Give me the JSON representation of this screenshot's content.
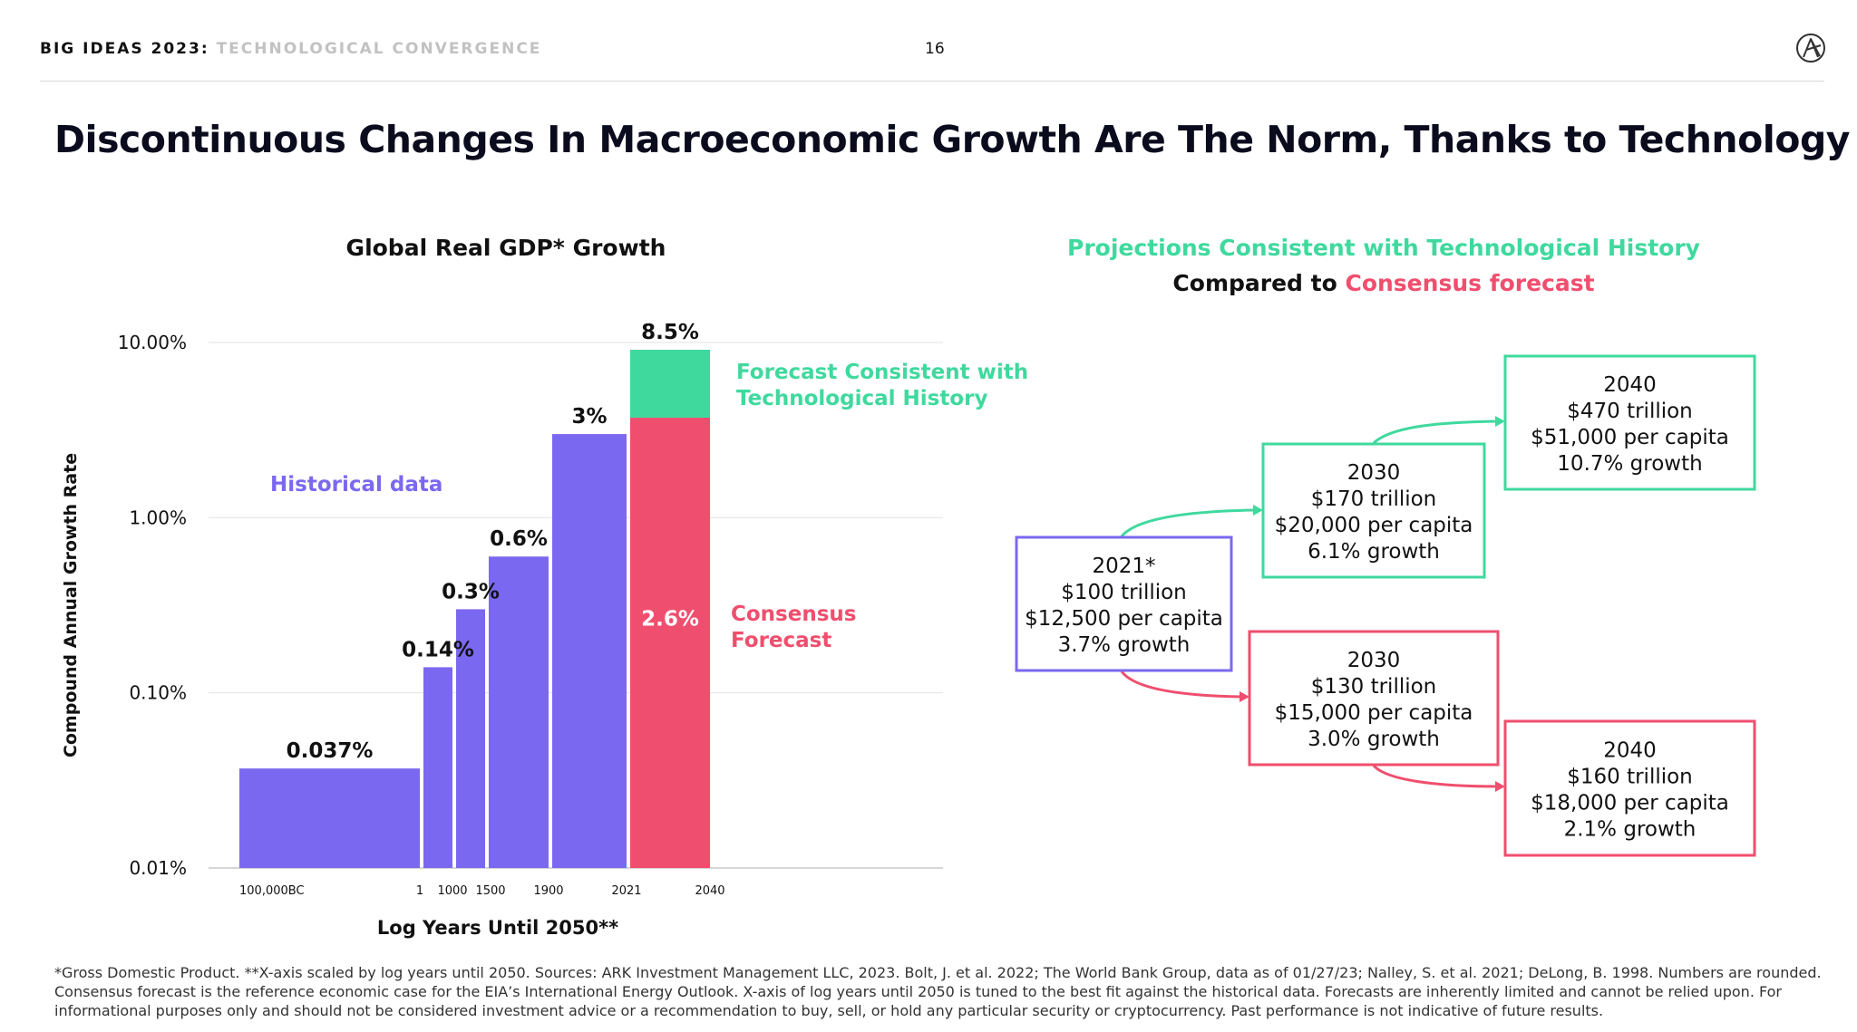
{
  "header": {
    "series": "BIG IDEAS 2023",
    "separator": ":",
    "section": "TECHNOLOGICAL CONVERGENCE",
    "page_number": "16",
    "logo_icon": "ark-logo-icon"
  },
  "title": "Discontinuous Changes In Macroeconomic Growth Are The Norm, Thanks to Technology",
  "colors": {
    "historical": "#7b68f0",
    "consensus": "#f04e6e",
    "technology": "#3fd99e",
    "text": "#111111",
    "muted": "#c2c2c2"
  },
  "chart_data": {
    "type": "bar",
    "title": "Global Real GDP* Growth",
    "ylabel": "Compound Annual Growth Rate",
    "xlabel": "Log Years Until 2050**",
    "yscale": "log",
    "ylim": [
      0.01,
      10
    ],
    "y_ticks": [
      {
        "value": 10,
        "label": "10.00%"
      },
      {
        "value": 1,
        "label": "1.00%"
      },
      {
        "value": 0.1,
        "label": "0.10%"
      },
      {
        "value": 0.01,
        "label": "0.01%"
      }
    ],
    "x_ticks": [
      "100,000BC",
      "1",
      "1000",
      "1500",
      "1900",
      "2021",
      "2040"
    ],
    "series": [
      {
        "name": "Historical data",
        "color": "#7b68f0",
        "bars": [
          {
            "from": "100,000BC",
            "to": "1",
            "value": 0.037,
            "label": "0.037%"
          },
          {
            "from": "1",
            "to": "1000",
            "value": 0.14,
            "label": "0.14%"
          },
          {
            "from": "1000",
            "to": "1500",
            "value": 0.3,
            "label": "0.3%"
          },
          {
            "from": "1500",
            "to": "1900",
            "value": 0.6,
            "label": "0.6%"
          },
          {
            "from": "1900",
            "to": "2021",
            "value": 3,
            "label": "3%"
          }
        ]
      },
      {
        "name": "Consensus Forecast",
        "color": "#f04e6e",
        "bars": [
          {
            "from": "2021",
            "to": "2040",
            "value": 2.6,
            "label": "2.6%"
          }
        ]
      },
      {
        "name": "Forecast Consistent with Technological History",
        "color": "#3fd99e",
        "bars": [
          {
            "from": "2021",
            "to": "2040",
            "value": 8.5,
            "label": "8.5%"
          }
        ]
      }
    ],
    "annotations": {
      "historical": "Historical data",
      "technology": [
        "Forecast Consistent with",
        "Technological History"
      ],
      "consensus": [
        "Consensus",
        "Forecast"
      ]
    }
  },
  "projections": {
    "heading_line1": "Projections Consistent with Technological History",
    "heading_line2_prefix": "Compared to ",
    "heading_line2_highlight": "Consensus forecast",
    "boxes": [
      {
        "id": "2021",
        "kind": "historical",
        "lines": [
          "2021*",
          "$100 trillion",
          "$12,500 per capita",
          "3.7% growth"
        ]
      },
      {
        "id": "tech-2030",
        "kind": "technology",
        "lines": [
          "2030",
          "$170 trillion",
          "$20,000 per capita",
          "6.1% growth"
        ]
      },
      {
        "id": "tech-2040",
        "kind": "technology",
        "lines": [
          "2040",
          "$470 trillion",
          "$51,000 per capita",
          "10.7% growth"
        ]
      },
      {
        "id": "cons-2030",
        "kind": "consensus",
        "lines": [
          "2030",
          "$130 trillion",
          "$15,000 per capita",
          "3.0% growth"
        ]
      },
      {
        "id": "cons-2040",
        "kind": "consensus",
        "lines": [
          "2040",
          "$160 trillion",
          "$18,000 per capita",
          "2.1% growth"
        ]
      }
    ]
  },
  "footnote": [
    "*Gross Domestic Product. **X-axis scaled by log years until 2050. Sources: ARK Investment Management LLC, 2023. Bolt, J. et al. 2022; The World Bank Group, data as of 01/27/23; Nalley, S. et al. 2021; DeLong, B. 1998. Numbers are rounded.",
    "Consensus forecast is the reference economic case for the EIA’s International Energy Outlook. X-axis of log years until 2050 is tuned to the best fit against the historical data. Forecasts are inherently limited and cannot be relied upon. For",
    "informational purposes only and should not be considered investment advice or a recommendation to buy, sell, or hold any particular security or cryptocurrency. Past performance is not indicative of future results."
  ]
}
